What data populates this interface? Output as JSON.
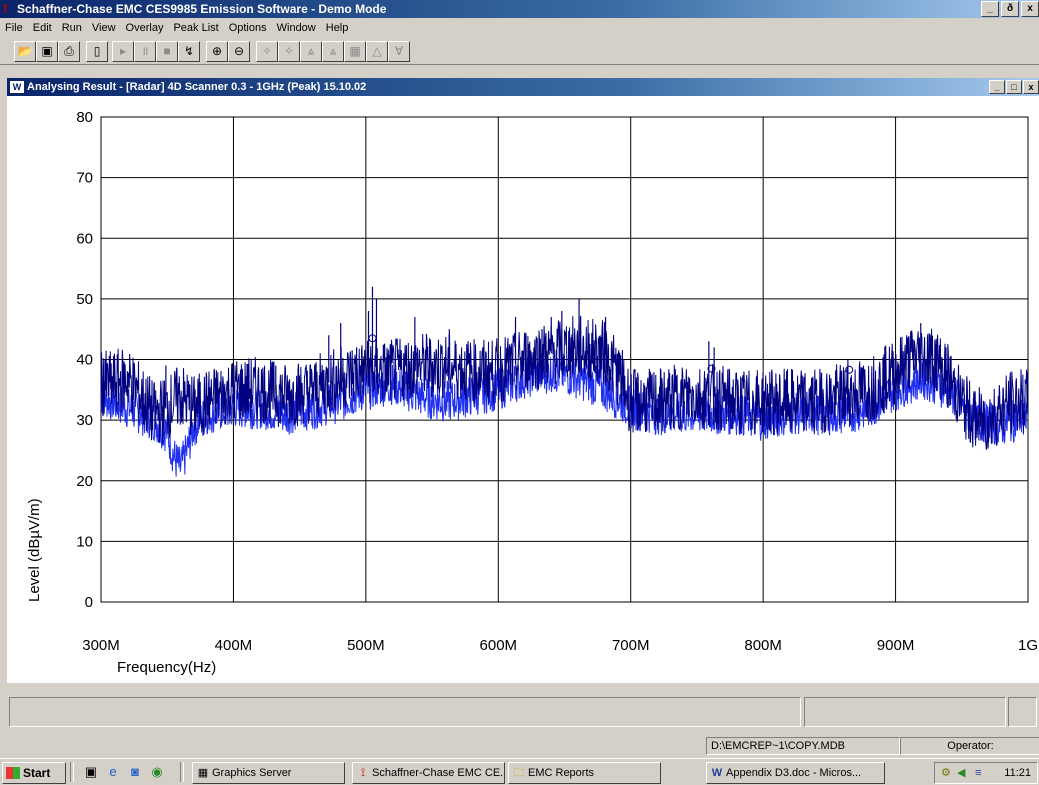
{
  "app": {
    "title": "Schaffner-Chase EMC CES9985 Emission Software - Demo Mode",
    "caption_buttons": [
      "_",
      "ð",
      "x"
    ]
  },
  "menu": [
    "File",
    "Edit",
    "Run",
    "View",
    "Overlay",
    "Peak List",
    "Options",
    "Window",
    "Help"
  ],
  "toolbar": {
    "buttons": [
      {
        "icon": "open-folder-icon",
        "glyph": "📂"
      },
      {
        "icon": "save-icon",
        "glyph": "▣"
      },
      {
        "icon": "print-icon",
        "glyph": "⎙"
      },
      {
        "icon": "new-document-icon",
        "glyph": "▯"
      },
      {
        "icon": "play-icon",
        "glyph": "▸"
      },
      {
        "icon": "pause-icon",
        "glyph": "॥"
      },
      {
        "icon": "stop-icon",
        "glyph": "■"
      },
      {
        "icon": "step-icon",
        "glyph": "↯"
      },
      {
        "icon": "zoom-in-icon",
        "glyph": "⊕"
      },
      {
        "icon": "zoom-out-icon",
        "glyph": "⊖"
      },
      {
        "icon": "marker-add-icon",
        "glyph": "✧"
      },
      {
        "icon": "marker-next-icon",
        "glyph": "✧"
      },
      {
        "icon": "peak-search-icon",
        "glyph": "⩓"
      },
      {
        "icon": "peak-list-icon",
        "glyph": "⩓"
      },
      {
        "icon": "peak-table-icon",
        "glyph": "▦"
      },
      {
        "icon": "limit-icon",
        "glyph": "△"
      },
      {
        "icon": "filter-icon",
        "glyph": "∀"
      }
    ]
  },
  "child_window": {
    "title": "Analysing Result - [Radar] 4D Scanner 0.3 - 1GHz (Peak) 15.10.02",
    "caption_buttons": [
      "_",
      "□",
      "x"
    ]
  },
  "chart_data": {
    "type": "line",
    "title": "",
    "xlabel": "Frequency(Hz)",
    "ylabel": "Level (dBµV/m)",
    "xlim": [
      300,
      1000
    ],
    "ylim": [
      0,
      80
    ],
    "x_unit": "MHz",
    "x_ticks": [
      300,
      400,
      500,
      600,
      700,
      800,
      900,
      1000
    ],
    "x_tick_labels": [
      "300M",
      "400M",
      "500M",
      "600M",
      "700M",
      "800M",
      "900M",
      "1G"
    ],
    "y_ticks": [
      0,
      10,
      20,
      30,
      40,
      50,
      60,
      70,
      80
    ],
    "y_tick_labels": [
      "0",
      "10",
      "20",
      "30",
      "40",
      "50",
      "60",
      "70",
      "80"
    ],
    "grid": true,
    "series": [
      {
        "color": "#000080",
        "x": [
          300,
          310,
          320,
          330,
          340,
          350,
          360,
          370,
          380,
          390,
          400,
          420,
          440,
          460,
          480,
          500,
          520,
          540,
          560,
          580,
          600,
          620,
          640,
          660,
          680,
          690,
          700,
          720,
          740,
          760,
          780,
          800,
          820,
          840,
          860,
          880,
          900,
          910,
          920,
          930,
          940,
          950,
          960,
          970,
          980,
          990,
          1000
        ],
        "values": [
          36,
          36,
          37,
          34,
          31,
          32,
          34,
          32,
          33,
          34,
          35,
          35,
          34,
          35,
          37,
          38,
          38,
          39,
          39,
          38,
          38,
          40,
          41,
          42,
          41,
          38,
          33,
          33,
          34,
          34,
          33,
          33,
          33,
          33,
          34,
          35,
          38,
          40,
          41,
          40,
          37,
          33,
          30,
          30,
          32,
          33,
          33
        ]
      },
      {
        "color": "#2030f0",
        "x": [
          300,
          310,
          320,
          330,
          340,
          350,
          355,
          360,
          365,
          370,
          380,
          400,
          420,
          440,
          460,
          480,
          500,
          520,
          540,
          560,
          580,
          600,
          620,
          640,
          660,
          680,
          700,
          720,
          740,
          760,
          780,
          800,
          820,
          840,
          860,
          880,
          900,
          920,
          940,
          960,
          980,
          1000
        ],
        "values": [
          34,
          33,
          32,
          31,
          30,
          28,
          24,
          22,
          25,
          29,
          31,
          32,
          32,
          31,
          32,
          33,
          35,
          36,
          34,
          33,
          34,
          35,
          37,
          38,
          37,
          35,
          32,
          31,
          31,
          31,
          31,
          30,
          31,
          31,
          31,
          32,
          35,
          37,
          35,
          30,
          29,
          31
        ]
      }
    ],
    "spikes": [
      {
        "x": 303,
        "y": 40
      },
      {
        "x": 320,
        "y": 38
      },
      {
        "x": 349,
        "y": 39
      },
      {
        "x": 362,
        "y": 32
      },
      {
        "x": 432,
        "y": 39
      },
      {
        "x": 472,
        "y": 44
      },
      {
        "x": 481,
        "y": 46
      },
      {
        "x": 493,
        "y": 42
      },
      {
        "x": 502,
        "y": 48
      },
      {
        "x": 505,
        "y": 52
      },
      {
        "x": 508,
        "y": 50
      },
      {
        "x": 537,
        "y": 47
      },
      {
        "x": 563,
        "y": 45
      },
      {
        "x": 613,
        "y": 47
      },
      {
        "x": 633,
        "y": 45
      },
      {
        "x": 640,
        "y": 47
      },
      {
        "x": 648,
        "y": 48
      },
      {
        "x": 661,
        "y": 50
      },
      {
        "x": 681,
        "y": 47
      },
      {
        "x": 759,
        "y": 43
      },
      {
        "x": 763,
        "y": 42
      },
      {
        "x": 864,
        "y": 40
      },
      {
        "x": 919,
        "y": 46
      }
    ],
    "markers": [
      {
        "x": 505,
        "y": 43.5
      },
      {
        "x": 761,
        "y": 38.5
      },
      {
        "x": 865,
        "y": 38.3
      }
    ]
  },
  "status_bar": {
    "panels": [
      "",
      "",
      ""
    ]
  },
  "info_bar": {
    "db_path": "D:\\EMCREP~1\\COPY.MDB",
    "operator_label": "Operator:"
  },
  "taskbar": {
    "start_label": "Start",
    "quick_launch": [
      "desktop-icon",
      "ie-icon",
      "outlook-icon",
      "media-icon"
    ],
    "tasks": [
      {
        "label": "Graphics Server",
        "icon": "graphics-server-icon",
        "glyph": "▦"
      },
      {
        "label": "Schaffner-Chase EMC CE...",
        "icon": "schaffner-icon",
        "glyph": "⟟"
      },
      {
        "label": "EMC Reports",
        "icon": "folder-icon",
        "glyph": "🗀"
      },
      {
        "label": "Appendix D3.doc - Micros...",
        "icon": "word-icon",
        "glyph": "W"
      }
    ],
    "clock": "11:21"
  }
}
